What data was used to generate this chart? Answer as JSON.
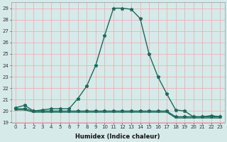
{
  "title": "",
  "xlabel": "Humidex (Indice chaleur)",
  "x": [
    0,
    1,
    2,
    3,
    4,
    5,
    6,
    7,
    8,
    9,
    10,
    11,
    12,
    13,
    14,
    15,
    16,
    17,
    18,
    19,
    20,
    21,
    22,
    23
  ],
  "y_humidex": [
    20.3,
    20.5,
    20.0,
    20.1,
    20.2,
    20.2,
    20.2,
    21.1,
    22.2,
    24.0,
    26.6,
    29.0,
    29.0,
    28.9,
    28.1,
    25.0,
    23.0,
    21.5,
    20.1,
    20.0,
    19.5,
    19.5,
    19.6,
    19.5
  ],
  "y_flat1": [
    20.2,
    20.2,
    20.0,
    20.0,
    20.0,
    20.0,
    20.0,
    20.0,
    20.0,
    20.0,
    20.0,
    20.0,
    20.0,
    20.0,
    20.0,
    20.0,
    20.0,
    20.0,
    19.5,
    19.5,
    19.5,
    19.5,
    19.5,
    19.5
  ],
  "y_flat2": [
    20.1,
    20.1,
    19.9,
    19.9,
    19.9,
    19.9,
    19.9,
    19.9,
    19.9,
    19.9,
    19.9,
    19.9,
    19.9,
    19.9,
    19.9,
    19.9,
    19.9,
    19.9,
    19.4,
    19.4,
    19.4,
    19.4,
    19.4,
    19.4
  ],
  "line_color": "#1a6b5a",
  "bg_color": "#d6eaea",
  "grid_color": "#f0b0b0",
  "ylim": [
    19.0,
    29.5
  ],
  "xlim": [
    -0.5,
    23.5
  ],
  "yticks": [
    19,
    20,
    21,
    22,
    23,
    24,
    25,
    26,
    27,
    28,
    29
  ],
  "xticks": [
    0,
    1,
    2,
    3,
    4,
    5,
    6,
    7,
    8,
    9,
    10,
    11,
    12,
    13,
    14,
    15,
    16,
    17,
    18,
    19,
    20,
    21,
    22,
    23
  ],
  "marker": "*",
  "markersize": 3.5,
  "linewidth": 1.0,
  "tick_fontsize": 5.0,
  "xlabel_fontsize": 6.0
}
